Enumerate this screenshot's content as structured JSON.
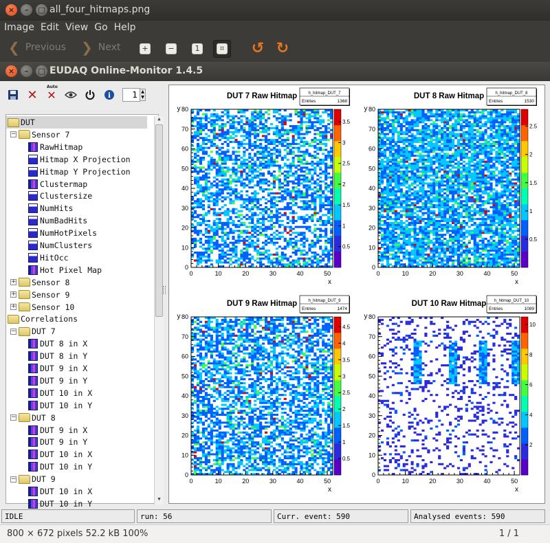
{
  "viewer": {
    "title": "all_four_hitmaps.png",
    "menu": [
      "Image",
      "Edit",
      "View",
      "Go",
      "Help"
    ],
    "prev_label": "Previous",
    "next_label": "Next",
    "footer_info": "800 × 672 pixels  52.2 kB  100%",
    "page_counter": "1 / 1"
  },
  "app": {
    "title": "EUDAQ Online-Monitor 1.4.5",
    "toolbar": {
      "spin_value": "1",
      "auto_label": "Auto"
    },
    "tree": [
      {
        "label": "DUT",
        "depth": 0,
        "kind": "folder",
        "expander": "",
        "selected": true
      },
      {
        "label": "Sensor 7",
        "depth": 1,
        "kind": "folder",
        "expander": "−"
      },
      {
        "label": "RawHitmap",
        "depth": 2,
        "kind": "hist2d"
      },
      {
        "label": "Hitmap X Projection",
        "depth": 2,
        "kind": "hist1d"
      },
      {
        "label": "Hitmap Y Projection",
        "depth": 2,
        "kind": "hist1d"
      },
      {
        "label": "Clustermap",
        "depth": 2,
        "kind": "hist2d"
      },
      {
        "label": "Clustersize",
        "depth": 2,
        "kind": "hist1d"
      },
      {
        "label": "NumHits",
        "depth": 2,
        "kind": "hist1d"
      },
      {
        "label": "NumBadHits",
        "depth": 2,
        "kind": "hist1d"
      },
      {
        "label": "NumHotPixels",
        "depth": 2,
        "kind": "hist1d"
      },
      {
        "label": "NumClusters",
        "depth": 2,
        "kind": "hist1d"
      },
      {
        "label": "HitOcc",
        "depth": 2,
        "kind": "hist1d"
      },
      {
        "label": "Hot Pixel Map",
        "depth": 2,
        "kind": "hist2d"
      },
      {
        "label": "Sensor 8",
        "depth": 1,
        "kind": "folder",
        "expander": "+"
      },
      {
        "label": "Sensor 9",
        "depth": 1,
        "kind": "folder",
        "expander": "+"
      },
      {
        "label": "Sensor 10",
        "depth": 1,
        "kind": "folder",
        "expander": "+"
      },
      {
        "label": "Correlations",
        "depth": 0,
        "kind": "folder",
        "expander": ""
      },
      {
        "label": "DUT 7",
        "depth": 1,
        "kind": "folder",
        "expander": "−"
      },
      {
        "label": "DUT 8 in X",
        "depth": 2,
        "kind": "hist2d"
      },
      {
        "label": "DUT 8 in Y",
        "depth": 2,
        "kind": "hist2d"
      },
      {
        "label": "DUT 9 in X",
        "depth": 2,
        "kind": "hist2d"
      },
      {
        "label": "DUT 9 in Y",
        "depth": 2,
        "kind": "hist2d"
      },
      {
        "label": "DUT 10 in X",
        "depth": 2,
        "kind": "hist2d"
      },
      {
        "label": "DUT 10 in Y",
        "depth": 2,
        "kind": "hist2d"
      },
      {
        "label": "DUT 8",
        "depth": 1,
        "kind": "folder",
        "expander": "−"
      },
      {
        "label": "DUT 9 in X",
        "depth": 2,
        "kind": "hist2d"
      },
      {
        "label": "DUT 9 in Y",
        "depth": 2,
        "kind": "hist2d"
      },
      {
        "label": "DUT 10 in X",
        "depth": 2,
        "kind": "hist2d"
      },
      {
        "label": "DUT 10 in Y",
        "depth": 2,
        "kind": "hist2d"
      },
      {
        "label": "DUT 9",
        "depth": 1,
        "kind": "folder",
        "expander": "−"
      },
      {
        "label": "DUT 10 in X",
        "depth": 2,
        "kind": "hist2d"
      },
      {
        "label": "DUT 10 in Y",
        "depth": 2,
        "kind": "hist2d"
      }
    ],
    "status": {
      "state": "IDLE",
      "run": "run: 56",
      "curr_event": "Curr. event: 590",
      "analysed": "Analysed events: 590"
    }
  },
  "chart_data": [
    {
      "type": "heatmap",
      "title": "DUT 7 Raw Hitmap",
      "stats_name": "h_hitmap_DUT_7",
      "entries_label": "Entries",
      "entries": "1368",
      "xlabel": "x",
      "ylabel": "y",
      "xlim": [
        0,
        52
      ],
      "ylim": [
        0,
        80
      ],
      "x_ticks": [
        "0",
        "10",
        "20",
        "30",
        "40",
        "50"
      ],
      "y_ticks": [
        "0",
        "10",
        "20",
        "30",
        "40",
        "50",
        "60",
        "70",
        "80"
      ],
      "z_ticks": [
        "0.5",
        "1",
        "1.5",
        "2",
        "2.5",
        "3",
        "3.5"
      ],
      "zmax": 3.8,
      "occupancy": 0.55,
      "dominant": 0.2
    },
    {
      "type": "heatmap",
      "title": "DUT 8 Raw Hitmap",
      "stats_name": "h_hitmap_DUT_8",
      "entries_label": "Entries",
      "entries": "1530",
      "xlabel": "x",
      "ylabel": "y",
      "xlim": [
        0,
        52
      ],
      "ylim": [
        0,
        80
      ],
      "x_ticks": [
        "0",
        "10",
        "20",
        "30",
        "40",
        "50"
      ],
      "y_ticks": [
        "0",
        "10",
        "20",
        "30",
        "40",
        "50",
        "60",
        "70",
        "80"
      ],
      "z_ticks": [
        "0.5",
        "1",
        "1.5",
        "2",
        "2.5"
      ],
      "zmax": 2.8,
      "occupancy": 0.78,
      "dominant": 0.42
    },
    {
      "type": "heatmap",
      "title": "DUT 9 Raw Hitmap",
      "stats_name": "h_hitmap_DUT_9",
      "entries_label": "Entries",
      "entries": "1474",
      "xlabel": "x",
      "ylabel": "y",
      "xlim": [
        0,
        52
      ],
      "ylim": [
        0,
        80
      ],
      "x_ticks": [
        "0",
        "10",
        "20",
        "30",
        "40",
        "50"
      ],
      "y_ticks": [
        "0",
        "10",
        "20",
        "30",
        "40",
        "50",
        "60",
        "70",
        "80"
      ],
      "z_ticks": [
        "0.5",
        "1",
        "1.5",
        "2",
        "2.5",
        "3",
        "3.5",
        "4",
        "4.5"
      ],
      "zmax": 4.8,
      "occupancy": 0.6,
      "dominant": 0.2
    },
    {
      "type": "heatmap",
      "title": "DUT 10 Raw Hitmap",
      "stats_name": "h_hitmap_DUT_10",
      "entries_label": "Entries",
      "entries": "1089",
      "xlabel": "x",
      "ylabel": "y",
      "xlim": [
        0,
        52
      ],
      "ylim": [
        0,
        80
      ],
      "x_ticks": [
        "0",
        "10",
        "20",
        "30",
        "40",
        "50"
      ],
      "y_ticks": [
        "0",
        "10",
        "20",
        "30",
        "40",
        "50",
        "60",
        "70",
        "80"
      ],
      "z_ticks": [
        "2",
        "4",
        "6",
        "8",
        "10"
      ],
      "zmax": 10.5,
      "occupancy": 0.18,
      "dominant": 0.05,
      "hot_columns": [
        14,
        27,
        38,
        50
      ]
    }
  ]
}
